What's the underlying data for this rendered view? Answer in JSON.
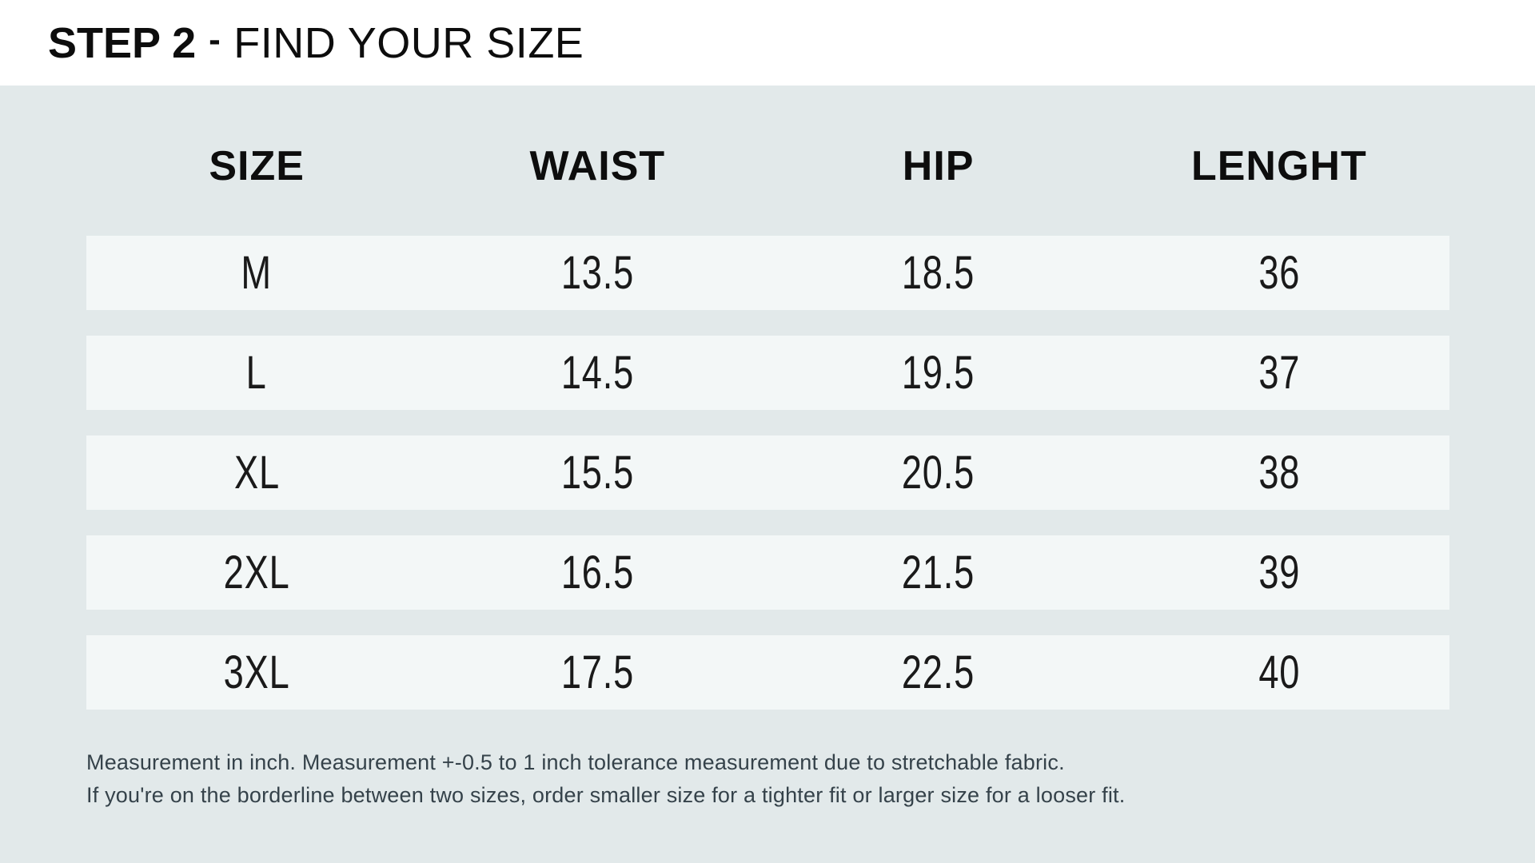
{
  "header": {
    "step": "STEP 2",
    "dash": "-",
    "title": "FIND YOUR SIZE"
  },
  "table": {
    "columns": [
      "SIZE",
      "WAIST",
      "HIP",
      "LENGHT"
    ],
    "rows": [
      [
        "M",
        "13.5",
        "18.5",
        "36"
      ],
      [
        "L",
        "14.5",
        "19.5",
        "37"
      ],
      [
        "XL",
        "15.5",
        "20.5",
        "38"
      ],
      [
        "2XL",
        "16.5",
        "21.5",
        "39"
      ],
      [
        "3XL",
        "17.5",
        "22.5",
        "40"
      ]
    ]
  },
  "notes": [
    "Measurement in inch. Measurement +-0.5 to 1 inch tolerance measurement due to stretchable fabric.",
    "If you're on the borderline between two sizes, order smaller size for a tighter fit or larger size for a looser fit."
  ],
  "colors": {
    "page_bg": "#e2e9ea",
    "band_bg": "#ffffff",
    "row_bg": "#f3f7f7",
    "heading_text": "#0d0d0d",
    "value_text": "#1a1a1a",
    "note_text": "#35424a"
  }
}
